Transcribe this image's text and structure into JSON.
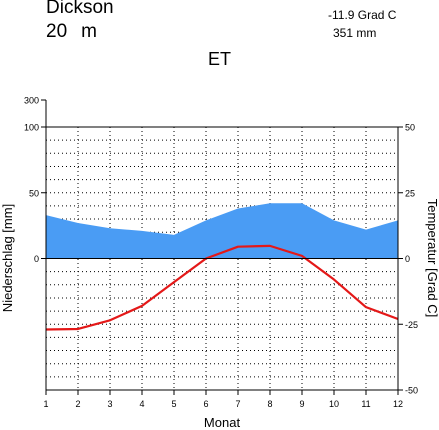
{
  "header": {
    "station": "Dickson",
    "elevation_value": "20",
    "elevation_unit": "m",
    "mean_temperature": "-11.9 Grad C",
    "annual_precipitation": "351 mm",
    "climate_class": "ET"
  },
  "chart_data": {
    "type": "line",
    "xlabel": "Monat",
    "ylabel_left": "Niederschlag [mm]",
    "ylabel_right": "Temperatur [Grad C]",
    "x": [
      1,
      2,
      3,
      4,
      5,
      6,
      7,
      8,
      9,
      10,
      11,
      12
    ],
    "x_tick_labels": [
      "1",
      "2",
      "3",
      "4",
      "5",
      "6",
      "7",
      "8",
      "9",
      "10",
      "11",
      "12"
    ],
    "left_axis": {
      "ticks": [
        0,
        50,
        100,
        300
      ],
      "tick_labels": [
        "0",
        "50",
        "100",
        "300"
      ],
      "range": [
        -100,
        300
      ]
    },
    "right_axis": {
      "ticks": [
        -50,
        -25,
        0,
        25,
        50
      ],
      "tick_labels": [
        "-50",
        "-25",
        "0",
        "25",
        "50"
      ],
      "range": [
        -50,
        50
      ]
    },
    "grid": true,
    "series": [
      {
        "values": [
          33,
          27,
          23,
          21,
          18,
          29,
          38,
          42,
          42,
          29,
          22,
          29
        ],
        "color": "#4a9cf4",
        "type": "area"
      },
      {
        "values": [
          -27,
          -26.8,
          -23.5,
          -18,
          -9,
          0,
          4.5,
          4.8,
          1,
          -8,
          -18.5,
          -23
        ],
        "color": "#e41818",
        "type": "line"
      }
    ]
  }
}
